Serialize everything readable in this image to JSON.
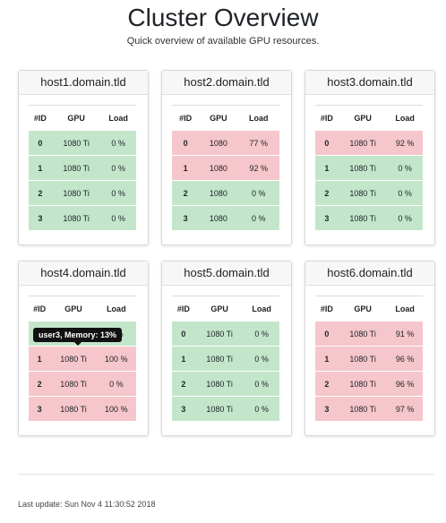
{
  "page": {
    "title": "Cluster Overview",
    "subtitle": "Quick overview of available GPU resources.",
    "footer": "Last update: Sun Nov 4 11:30:52 2018"
  },
  "columns": {
    "id": "#ID",
    "gpu": "GPU",
    "load": "Load"
  },
  "colors": {
    "free": "#c3e6cb",
    "busy": "#f5c6cb"
  },
  "hosts": [
    {
      "name": "host1.domain.tld",
      "gpus": [
        {
          "id": "0",
          "gpu": "1080 Ti",
          "load": "0 %",
          "status": "free"
        },
        {
          "id": "1",
          "gpu": "1080 Ti",
          "load": "0 %",
          "status": "free"
        },
        {
          "id": "2",
          "gpu": "1080 Ti",
          "load": "0 %",
          "status": "free"
        },
        {
          "id": "3",
          "gpu": "1080 Ti",
          "load": "0 %",
          "status": "free"
        }
      ]
    },
    {
      "name": "host2.domain.tld",
      "gpus": [
        {
          "id": "0",
          "gpu": "1080",
          "load": "77 %",
          "status": "busy"
        },
        {
          "id": "1",
          "gpu": "1080",
          "load": "92 %",
          "status": "busy"
        },
        {
          "id": "2",
          "gpu": "1080",
          "load": "0 %",
          "status": "free"
        },
        {
          "id": "3",
          "gpu": "1080",
          "load": "0 %",
          "status": "free"
        }
      ]
    },
    {
      "name": "host3.domain.tld",
      "gpus": [
        {
          "id": "0",
          "gpu": "1080 Ti",
          "load": "92 %",
          "status": "busy"
        },
        {
          "id": "1",
          "gpu": "1080 Ti",
          "load": "0 %",
          "status": "free"
        },
        {
          "id": "2",
          "gpu": "1080 Ti",
          "load": "0 %",
          "status": "free"
        },
        {
          "id": "3",
          "gpu": "1080 Ti",
          "load": "0 %",
          "status": "free"
        }
      ]
    },
    {
      "name": "host4.domain.tld",
      "tooltip": "user3, Memory: 13%",
      "gpus": [
        {
          "id": "0",
          "gpu": "1080 Ti",
          "load": "0 %",
          "status": "free"
        },
        {
          "id": "1",
          "gpu": "1080 Ti",
          "load": "100 %",
          "status": "busy"
        },
        {
          "id": "2",
          "gpu": "1080 Ti",
          "load": "0 %",
          "status": "busy"
        },
        {
          "id": "3",
          "gpu": "1080 Ti",
          "load": "100 %",
          "status": "busy"
        }
      ]
    },
    {
      "name": "host5.domain.tld",
      "gpus": [
        {
          "id": "0",
          "gpu": "1080 Ti",
          "load": "0 %",
          "status": "free"
        },
        {
          "id": "1",
          "gpu": "1080 Ti",
          "load": "0 %",
          "status": "free"
        },
        {
          "id": "2",
          "gpu": "1080 Ti",
          "load": "0 %",
          "status": "free"
        },
        {
          "id": "3",
          "gpu": "1080 Ti",
          "load": "0 %",
          "status": "free"
        }
      ]
    },
    {
      "name": "host6.domain.tld",
      "gpus": [
        {
          "id": "0",
          "gpu": "1080 Ti",
          "load": "91 %",
          "status": "busy"
        },
        {
          "id": "1",
          "gpu": "1080 Ti",
          "load": "96 %",
          "status": "busy"
        },
        {
          "id": "2",
          "gpu": "1080 Ti",
          "load": "96 %",
          "status": "busy"
        },
        {
          "id": "3",
          "gpu": "1080 Ti",
          "load": "97 %",
          "status": "busy"
        }
      ]
    }
  ]
}
